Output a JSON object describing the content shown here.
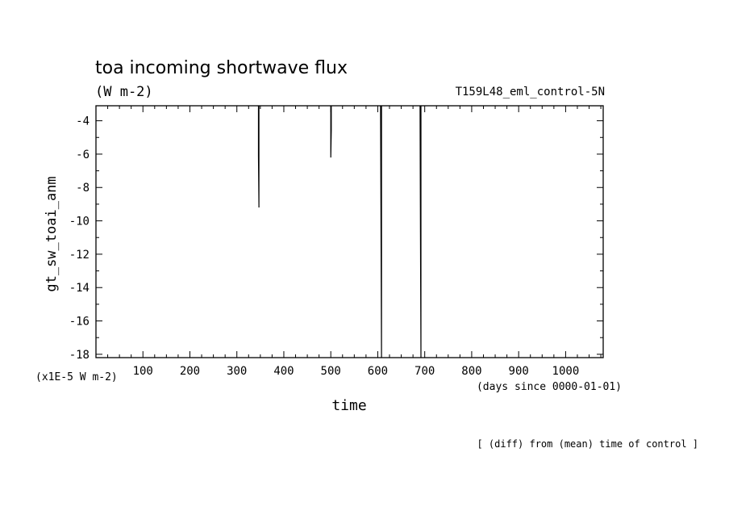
{
  "chart_data": {
    "type": "line",
    "title": "toa incoming shortwave flux",
    "units_label": "(W m-2)",
    "run_label": "T159L48_eml_control-5N",
    "ylabel": "gt_sw_toai_anm",
    "y_scale_label": "(x1E-5 W m-2)",
    "xlabel": "time",
    "x_units_label": "(days since 0000-01-01)",
    "footnote": "[ (diff) from (mean) time of control ]",
    "xlim": [
      0,
      1080
    ],
    "ylim": [
      -18.2,
      -3.1
    ],
    "x_ticks": [
      100,
      200,
      300,
      400,
      500,
      600,
      700,
      800,
      900,
      1000
    ],
    "x_tick_labels": [
      "100",
      "200",
      "300",
      "400",
      "500",
      "600",
      "700",
      "800",
      "900",
      "1000"
    ],
    "y_ticks": [
      -4,
      -6,
      -8,
      -10,
      -12,
      -14,
      -16,
      -18
    ],
    "y_tick_labels": [
      "-4",
      "-6",
      "-8",
      "-10",
      "-12",
      "-14",
      "-16",
      "-18"
    ],
    "grid": false,
    "series": [
      {
        "segments": [
          [
            [
              346,
              -3.1
            ],
            [
              346,
              -6.1
            ],
            [
              347,
              -9.2
            ],
            [
              347,
              -3.1
            ]
          ],
          [
            [
              500,
              -3.1
            ],
            [
              500,
              -6.2
            ],
            [
              501,
              -4.6
            ],
            [
              501,
              -3.1
            ]
          ],
          [
            [
              606,
              -3.1
            ],
            [
              607,
              -10.7
            ],
            [
              608,
              -18.2
            ],
            [
              608,
              -3.1
            ]
          ],
          [
            [
              690,
              -3.1
            ],
            [
              691,
              -10.7
            ],
            [
              692,
              -18.2
            ],
            [
              692,
              -3.1
            ]
          ]
        ]
      }
    ]
  }
}
